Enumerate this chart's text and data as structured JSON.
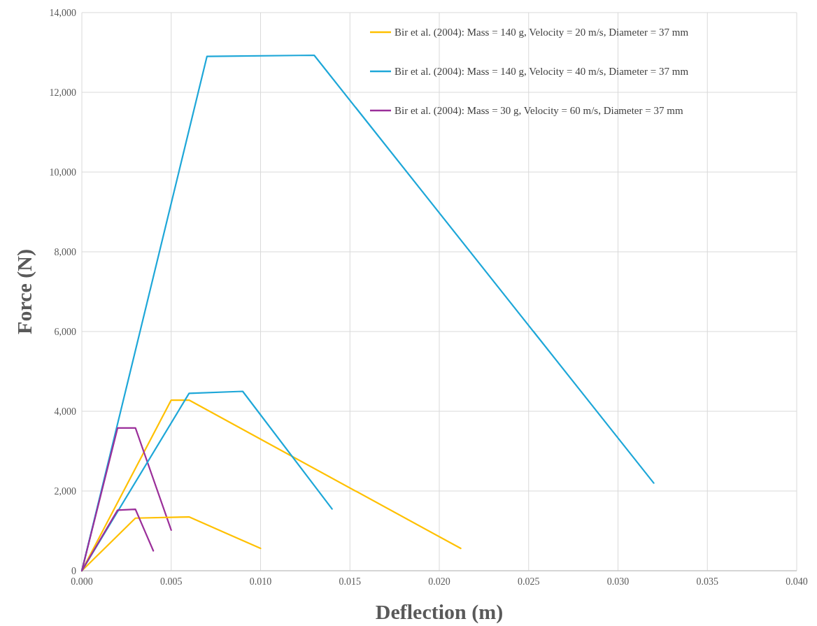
{
  "chart_data": {
    "type": "line",
    "xlabel": "Deflection (m)",
    "ylabel": "Force (N)",
    "series": [
      {
        "name": "Bir et al. (2004): Mass = 140 g, Velocity = 20 m/s, Diameter = 37 mm",
        "color": "#ffc000",
        "x": [
          0,
          0.005,
          0.006,
          0.0212
        ],
        "values": [
          0,
          4280,
          4280,
          560
        ]
      },
      {
        "name": "Bir et al. (2004): Mass = 140 g, Velocity = 40 m/s, Diameter = 37 mm",
        "color": "#1ea7d8",
        "x": [
          0,
          0.007,
          0.013,
          0.032
        ],
        "values": [
          0,
          12900,
          12930,
          2200
        ]
      },
      {
        "name": "Bir et al. (2004): Mass = 30 g, Velocity = 60 m/s, Diameter = 37 mm",
        "color": "#9b2f9a",
        "x": [
          0,
          0.002,
          0.003,
          0.005
        ],
        "values": [
          0,
          3580,
          3580,
          1020
        ]
      },
      {
        "color": "#ffc000",
        "x": [
          0,
          0.003,
          0.006,
          0.01
        ],
        "values": [
          0,
          1320,
          1350,
          560
        ]
      },
      {
        "color": "#1ea7d8",
        "x": [
          0,
          0.006,
          0.009,
          0.014
        ],
        "values": [
          0,
          4450,
          4500,
          1550
        ]
      },
      {
        "color": "#9b2f9a",
        "x": [
          0,
          0.002,
          0.003,
          0.004
        ],
        "values": [
          0,
          1520,
          1540,
          500
        ]
      }
    ],
    "xlim": [
      0,
      0.04
    ],
    "xticks": [
      {
        "value": 0,
        "label": "0.000"
      },
      0.005,
      {
        "value": 0.01,
        "label": "0.010"
      },
      0.015,
      {
        "value": 0.02,
        "label": "0.020"
      },
      0.025,
      {
        "value": 0.03,
        "label": "0.030"
      },
      0.035,
      {
        "value": 0.04,
        "label": "0.040"
      }
    ],
    "ylim": [
      0,
      14000
    ],
    "yticks": [
      0,
      {
        "value": 2000,
        "label": "2,000"
      },
      {
        "value": 4000,
        "label": "4,000"
      },
      {
        "value": 6000,
        "label": "6,000"
      },
      {
        "value": 8000,
        "label": "8,000"
      },
      {
        "value": 10000,
        "label": "10,000"
      },
      {
        "value": 12000,
        "label": "12,000"
      },
      {
        "value": 14000,
        "label": "14,000"
      }
    ],
    "grid": true,
    "legend": "top right",
    "marker": "none",
    "line_style": "solid"
  }
}
